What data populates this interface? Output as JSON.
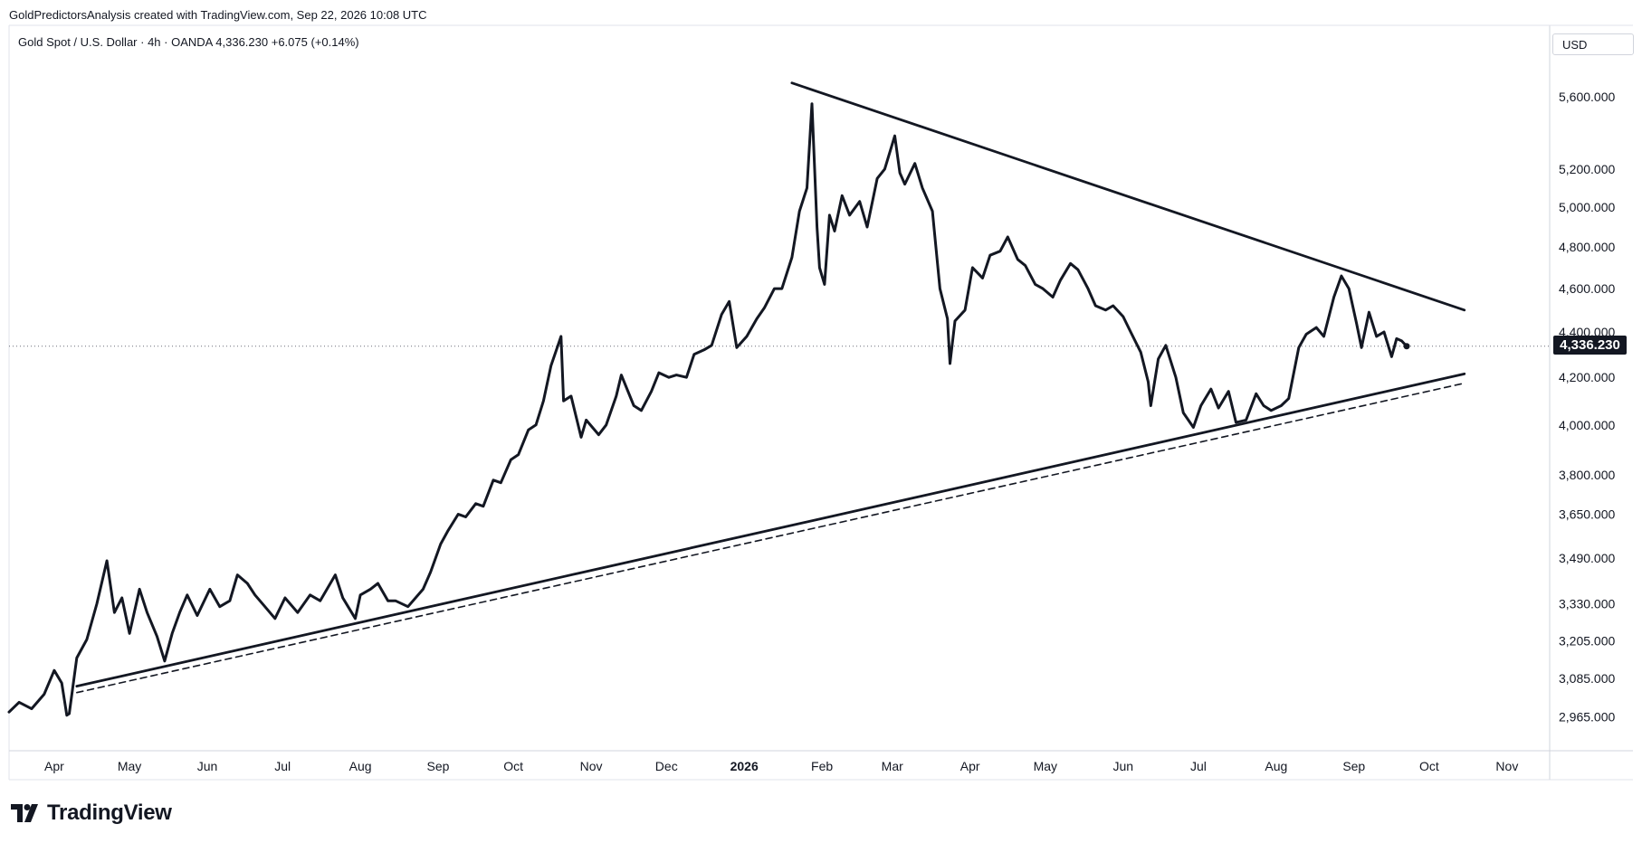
{
  "caption": "GoldPredictorsAnalysis created with TradingView.com, Sep 22, 2026 10:08 UTC",
  "symbol": {
    "name": "Gold Spot / U.S. Dollar",
    "interval": "4h",
    "source": "OANDA",
    "last": "4,336.230",
    "change": "+6.075",
    "change_pct": "(+0.14%)"
  },
  "currency": "USD",
  "price_tag": "4,336.230",
  "brand": "TradingView",
  "colors": {
    "line": "#131722",
    "axis": "#787b86",
    "grid_border": "#d1d4dc",
    "tag_bg": "#131722"
  },
  "chart_data": {
    "type": "line",
    "title": "Gold Spot / U.S. Dollar · 4h · OANDA",
    "y_axis": {
      "scale": "log",
      "range": [
        2900,
        5800
      ],
      "ticks": [
        2965,
        3085,
        3205,
        3330,
        3490,
        3650,
        3800,
        4000,
        4200,
        4400,
        4600,
        4800,
        5000,
        5200,
        5600
      ],
      "tick_labels": [
        "2,965.000",
        "3,085.000",
        "3,205.000",
        "3,330.000",
        "3,490.000",
        "3,650.000",
        "3,800.000",
        "4,000.000",
        "4,200.000",
        "4,400.000",
        "4,600.000",
        "4,800.000",
        "5,000.000",
        "5,200.000",
        "5,600.000"
      ]
    },
    "x_axis": {
      "range": [
        "2025-03-14",
        "2026-11-18"
      ],
      "ticks": [
        "2025-04-01",
        "2025-05-01",
        "2025-06-01",
        "2025-07-01",
        "2025-08-01",
        "2025-09-01",
        "2025-10-01",
        "2025-11-01",
        "2025-12-01",
        "2026-01-01",
        "2026-02-01",
        "2026-03-01",
        "2026-04-01",
        "2026-05-01",
        "2026-06-01",
        "2026-07-01",
        "2026-08-01",
        "2026-09-01",
        "2026-10-01",
        "2026-11-01"
      ],
      "tick_labels": [
        "Apr",
        "May",
        "Jun",
        "Jul",
        "Aug",
        "Sep",
        "Oct",
        "Nov",
        "Dec",
        "2026",
        "Feb",
        "Mar",
        "Apr",
        "May",
        "Jun",
        "Jul",
        "Aug",
        "Sep",
        "Oct",
        "Nov"
      ],
      "bold_ticks": [
        "2026"
      ]
    },
    "series": [
      {
        "points": [
          [
            "2025-03-14",
            2980
          ],
          [
            "2025-03-18",
            3010
          ],
          [
            "2025-03-23",
            2990
          ],
          [
            "2025-03-28",
            3035
          ],
          [
            "2025-04-01",
            3110
          ],
          [
            "2025-04-04",
            3070
          ],
          [
            "2025-04-06",
            2970
          ],
          [
            "2025-04-07",
            2975
          ],
          [
            "2025-04-10",
            3150
          ],
          [
            "2025-04-14",
            3210
          ],
          [
            "2025-04-18",
            3330
          ],
          [
            "2025-04-22",
            3480
          ],
          [
            "2025-04-25",
            3300
          ],
          [
            "2025-04-28",
            3350
          ],
          [
            "2025-05-01",
            3230
          ],
          [
            "2025-05-05",
            3380
          ],
          [
            "2025-05-08",
            3300
          ],
          [
            "2025-05-12",
            3220
          ],
          [
            "2025-05-15",
            3140
          ],
          [
            "2025-05-18",
            3230
          ],
          [
            "2025-05-21",
            3300
          ],
          [
            "2025-05-24",
            3360
          ],
          [
            "2025-05-28",
            3290
          ],
          [
            "2025-06-02",
            3380
          ],
          [
            "2025-06-06",
            3320
          ],
          [
            "2025-06-10",
            3340
          ],
          [
            "2025-06-13",
            3430
          ],
          [
            "2025-06-17",
            3400
          ],
          [
            "2025-06-20",
            3360
          ],
          [
            "2025-06-24",
            3320
          ],
          [
            "2025-06-28",
            3280
          ],
          [
            "2025-07-02",
            3350
          ],
          [
            "2025-07-07",
            3300
          ],
          [
            "2025-07-12",
            3360
          ],
          [
            "2025-07-16",
            3340
          ],
          [
            "2025-07-22",
            3430
          ],
          [
            "2025-07-25",
            3350
          ],
          [
            "2025-07-30",
            3280
          ],
          [
            "2025-08-01",
            3360
          ],
          [
            "2025-08-05",
            3380
          ],
          [
            "2025-08-08",
            3400
          ],
          [
            "2025-08-12",
            3340
          ],
          [
            "2025-08-15",
            3340
          ],
          [
            "2025-08-20",
            3320
          ],
          [
            "2025-08-26",
            3380
          ],
          [
            "2025-08-29",
            3440
          ],
          [
            "2025-09-02",
            3540
          ],
          [
            "2025-09-05",
            3590
          ],
          [
            "2025-09-09",
            3650
          ],
          [
            "2025-09-12",
            3640
          ],
          [
            "2025-09-16",
            3690
          ],
          [
            "2025-09-19",
            3680
          ],
          [
            "2025-09-23",
            3780
          ],
          [
            "2025-09-26",
            3770
          ],
          [
            "2025-09-30",
            3860
          ],
          [
            "2025-10-03",
            3880
          ],
          [
            "2025-10-07",
            3980
          ],
          [
            "2025-10-10",
            4000
          ],
          [
            "2025-10-13",
            4100
          ],
          [
            "2025-10-16",
            4250
          ],
          [
            "2025-10-20",
            4380
          ],
          [
            "2025-10-21",
            4100
          ],
          [
            "2025-10-24",
            4120
          ],
          [
            "2025-10-28",
            3950
          ],
          [
            "2025-10-30",
            4020
          ],
          [
            "2025-11-04",
            3960
          ],
          [
            "2025-11-07",
            4000
          ],
          [
            "2025-11-11",
            4120
          ],
          [
            "2025-11-13",
            4210
          ],
          [
            "2025-11-18",
            4080
          ],
          [
            "2025-11-21",
            4060
          ],
          [
            "2025-11-25",
            4140
          ],
          [
            "2025-11-28",
            4220
          ],
          [
            "2025-12-02",
            4200
          ],
          [
            "2025-12-05",
            4210
          ],
          [
            "2025-12-09",
            4200
          ],
          [
            "2025-12-12",
            4300
          ],
          [
            "2025-12-16",
            4320
          ],
          [
            "2025-12-19",
            4340
          ],
          [
            "2025-12-23",
            4480
          ],
          [
            "2025-12-26",
            4540
          ],
          [
            "2025-12-29",
            4330
          ],
          [
            "2026-01-02",
            4380
          ],
          [
            "2026-01-06",
            4460
          ],
          [
            "2026-01-09",
            4510
          ],
          [
            "2026-01-13",
            4600
          ],
          [
            "2026-01-16",
            4600
          ],
          [
            "2026-01-20",
            4750
          ],
          [
            "2026-01-23",
            4980
          ],
          [
            "2026-01-26",
            5100
          ],
          [
            "2026-01-28",
            5560
          ],
          [
            "2026-01-30",
            4900
          ],
          [
            "2026-01-31",
            4700
          ],
          [
            "2026-02-02",
            4620
          ],
          [
            "2026-02-04",
            4960
          ],
          [
            "2026-02-06",
            4880
          ],
          [
            "2026-02-09",
            5060
          ],
          [
            "2026-02-12",
            4960
          ],
          [
            "2026-02-16",
            5030
          ],
          [
            "2026-02-19",
            4900
          ],
          [
            "2026-02-23",
            5150
          ],
          [
            "2026-02-26",
            5200
          ],
          [
            "2026-03-02",
            5380
          ],
          [
            "2026-03-04",
            5180
          ],
          [
            "2026-03-06",
            5120
          ],
          [
            "2026-03-10",
            5230
          ],
          [
            "2026-03-13",
            5100
          ],
          [
            "2026-03-17",
            4980
          ],
          [
            "2026-03-20",
            4600
          ],
          [
            "2026-03-23",
            4460
          ],
          [
            "2026-03-24",
            4260
          ],
          [
            "2026-03-26",
            4450
          ],
          [
            "2026-03-30",
            4500
          ],
          [
            "2026-04-02",
            4700
          ],
          [
            "2026-04-06",
            4650
          ],
          [
            "2026-04-09",
            4760
          ],
          [
            "2026-04-13",
            4780
          ],
          [
            "2026-04-16",
            4850
          ],
          [
            "2026-04-20",
            4740
          ],
          [
            "2026-04-23",
            4710
          ],
          [
            "2026-04-27",
            4620
          ],
          [
            "2026-04-30",
            4600
          ],
          [
            "2026-05-04",
            4560
          ],
          [
            "2026-05-07",
            4640
          ],
          [
            "2026-05-11",
            4720
          ],
          [
            "2026-05-14",
            4690
          ],
          [
            "2026-05-18",
            4600
          ],
          [
            "2026-05-21",
            4520
          ],
          [
            "2026-05-25",
            4500
          ],
          [
            "2026-05-28",
            4520
          ],
          [
            "2026-06-01",
            4470
          ],
          [
            "2026-06-04",
            4400
          ],
          [
            "2026-06-08",
            4310
          ],
          [
            "2026-06-11",
            4180
          ],
          [
            "2026-06-12",
            4080
          ],
          [
            "2026-06-15",
            4280
          ],
          [
            "2026-06-18",
            4340
          ],
          [
            "2026-06-22",
            4200
          ],
          [
            "2026-06-25",
            4050
          ],
          [
            "2026-06-29",
            3990
          ],
          [
            "2026-07-02",
            4080
          ],
          [
            "2026-07-06",
            4150
          ],
          [
            "2026-07-09",
            4070
          ],
          [
            "2026-07-13",
            4140
          ],
          [
            "2026-07-16",
            4010
          ],
          [
            "2026-07-20",
            4020
          ],
          [
            "2026-07-24",
            4130
          ],
          [
            "2026-07-27",
            4080
          ],
          [
            "2026-07-30",
            4060
          ],
          [
            "2026-08-03",
            4080
          ],
          [
            "2026-08-06",
            4110
          ],
          [
            "2026-08-10",
            4330
          ],
          [
            "2026-08-13",
            4390
          ],
          [
            "2026-08-17",
            4420
          ],
          [
            "2026-08-20",
            4380
          ],
          [
            "2026-08-24",
            4560
          ],
          [
            "2026-08-27",
            4660
          ],
          [
            "2026-08-30",
            4600
          ],
          [
            "2026-09-02",
            4440
          ],
          [
            "2026-09-04",
            4330
          ],
          [
            "2026-09-07",
            4490
          ],
          [
            "2026-09-10",
            4380
          ],
          [
            "2026-09-13",
            4400
          ],
          [
            "2026-09-16",
            4290
          ],
          [
            "2026-09-18",
            4370
          ],
          [
            "2026-09-20",
            4360
          ],
          [
            "2026-09-22",
            4336.23
          ]
        ]
      }
    ],
    "trendlines": [
      {
        "style": "solid",
        "from": [
          "2025-04-10",
          3060
        ],
        "to": [
          "2026-10-15",
          4215
        ]
      },
      {
        "style": "dashed",
        "from": [
          "2025-04-10",
          3040
        ],
        "to": [
          "2026-10-15",
          4175
        ]
      },
      {
        "style": "solid",
        "from": [
          "2026-01-20",
          5680
        ],
        "to": [
          "2026-10-15",
          4500
        ]
      }
    ],
    "last_price_line": 4336.23,
    "grid": false,
    "legend": "none"
  }
}
